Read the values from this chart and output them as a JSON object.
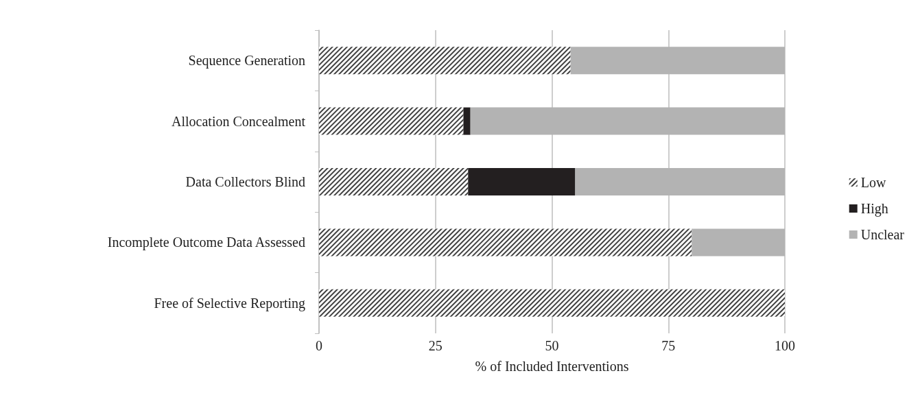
{
  "chart_data": {
    "type": "bar",
    "orientation": "horizontal",
    "stacked": true,
    "xlabel": "% of Included Interventions",
    "categories": [
      "Sequence Generation",
      "Allocation Concealment",
      "Data Collectors Blind",
      "Incomplete Outcome Data Assessed",
      "Free of Selective Reporting"
    ],
    "series": [
      {
        "name": "Low",
        "color": "#404040",
        "values": [
          54,
          31,
          32,
          80,
          100
        ]
      },
      {
        "name": "High",
        "color": "#231f20",
        "values": [
          0,
          1.5,
          23,
          0,
          0
        ]
      },
      {
        "name": "Unclear",
        "color": "#b3b3b3",
        "values": [
          46,
          67.5,
          45,
          20,
          0
        ]
      }
    ],
    "xlim": [
      0,
      100
    ],
    "xticks": [
      0,
      25,
      50,
      75,
      100
    ],
    "grid": "x",
    "legend": "right"
  }
}
